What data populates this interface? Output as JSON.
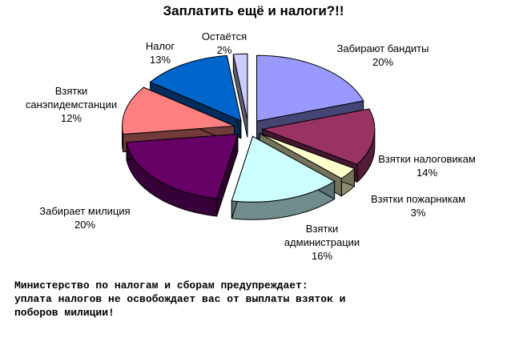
{
  "chart_data": {
    "type": "pie",
    "title": "Заплатить ещё и налоги?!!",
    "slices": [
      {
        "label": [
          "Забирают бандиты"
        ],
        "value": 20,
        "value_label": "20%",
        "color": "#9999ff"
      },
      {
        "label": [
          "Взятки налоговикам"
        ],
        "value": 14,
        "value_label": "14%",
        "color": "#993366"
      },
      {
        "label": [
          "Взятки пожарникам"
        ],
        "value": 3,
        "value_label": "3%",
        "color": "#ffffcc"
      },
      {
        "label": [
          "Взятки",
          "администрации"
        ],
        "value": 16,
        "value_label": "16%",
        "color": "#ccffff"
      },
      {
        "label": [
          "Забирает милиция"
        ],
        "value": 20,
        "value_label": "20%",
        "color": "#660066"
      },
      {
        "label": [
          "Взятки",
          "санэпидемстанции"
        ],
        "value": 12,
        "value_label": "12%",
        "color": "#ff8080"
      },
      {
        "label": [
          "Налог"
        ],
        "value": 13,
        "value_label": "13%",
        "color": "#0066cc"
      },
      {
        "label": [
          "Остаётся"
        ],
        "value": 2,
        "value_label": "2%",
        "color": "#ccccff"
      }
    ]
  },
  "footer": {
    "lines": [
      "Министерство по налогам и сборам предупреждает:",
      "уплата налогов не освобождает вас от выплаты взяток и",
      "поборов милиции!"
    ]
  }
}
